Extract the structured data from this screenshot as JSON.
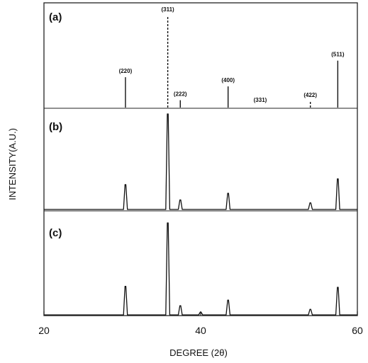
{
  "chart_data": {
    "type": "line",
    "xlabel": "DEGREE (2θ)",
    "ylabel": "INTENSITY(A.U.)",
    "xlim": [
      20,
      60
    ],
    "xticks": [
      20,
      40,
      60
    ],
    "tick_labels": [
      "20",
      "40",
      "60"
    ],
    "grid": false,
    "panels": [
      {
        "label": "(a)",
        "kind": "reference-sticks",
        "peaks": [
          {
            "hkl": "(220)",
            "x": 30.4,
            "y": 0.33,
            "style": "solid"
          },
          {
            "hkl": "(311)",
            "x": 35.8,
            "y": 1.0,
            "style": "dashed"
          },
          {
            "hkl": "(222)",
            "x": 37.4,
            "y": 0.08,
            "style": "solid"
          },
          {
            "hkl": "(400)",
            "x": 43.5,
            "y": 0.23,
            "style": "solid"
          },
          {
            "hkl": "(331)",
            "x": 47.6,
            "y": 0.0,
            "style": "solid"
          },
          {
            "hkl": "(422)",
            "x": 54.0,
            "y": 0.07,
            "style": "dashed"
          },
          {
            "hkl": "(511)",
            "x": 57.5,
            "y": 0.51,
            "style": "solid"
          }
        ]
      },
      {
        "label": "(b)",
        "kind": "pattern",
        "peaks": [
          {
            "x": 30.4,
            "y": 0.26
          },
          {
            "x": 35.8,
            "y": 1.0
          },
          {
            "x": 37.4,
            "y": 0.1
          },
          {
            "x": 43.5,
            "y": 0.17
          },
          {
            "x": 54.0,
            "y": 0.07
          },
          {
            "x": 57.5,
            "y": 0.32
          }
        ]
      },
      {
        "label": "(c)",
        "kind": "pattern",
        "peaks": [
          {
            "x": 30.4,
            "y": 0.31
          },
          {
            "x": 35.8,
            "y": 1.0
          },
          {
            "x": 37.4,
            "y": 0.1
          },
          {
            "x": 40.0,
            "y": 0.03
          },
          {
            "x": 43.5,
            "y": 0.16
          },
          {
            "x": 54.0,
            "y": 0.06
          },
          {
            "x": 57.5,
            "y": 0.3
          }
        ]
      }
    ]
  }
}
